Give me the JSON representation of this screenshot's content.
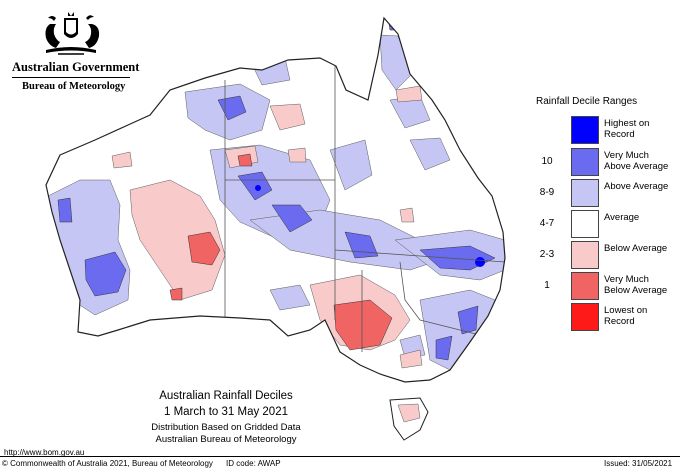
{
  "header": {
    "government": "Australian Government",
    "bureau": "Bureau of Meteorology"
  },
  "legend": {
    "title": "Rainfall Decile Ranges",
    "items": [
      {
        "code": "",
        "label": "Highest on Record",
        "color": "#0000ff"
      },
      {
        "code": "10",
        "label": "Very Much Above Average",
        "color": "#6b6bf0"
      },
      {
        "code": "8-9",
        "label": "Above Average",
        "color": "#c6c6f4"
      },
      {
        "code": "4-7",
        "label": "Average",
        "color": "#ffffff"
      },
      {
        "code": "2-3",
        "label": "Below Average",
        "color": "#f9caca"
      },
      {
        "code": "1",
        "label": "Very Much Below Average",
        "color": "#f06464"
      },
      {
        "code": "",
        "label": "Lowest on Record",
        "color": "#ff1a1a"
      }
    ]
  },
  "caption": {
    "title": "Australian Rainfall Deciles",
    "period": "1 March to 31 May 2021",
    "basis": "Distribution Based on Gridded Data",
    "source": "Australian Bureau of Meteorology"
  },
  "footer": {
    "url": "http://www.bom.gov.au",
    "copyright": "© Commonwealth of Australia 2021, Bureau of Meteorology",
    "id_code": "ID code: AWAP",
    "issued": "Issued: 31/05/2021"
  }
}
